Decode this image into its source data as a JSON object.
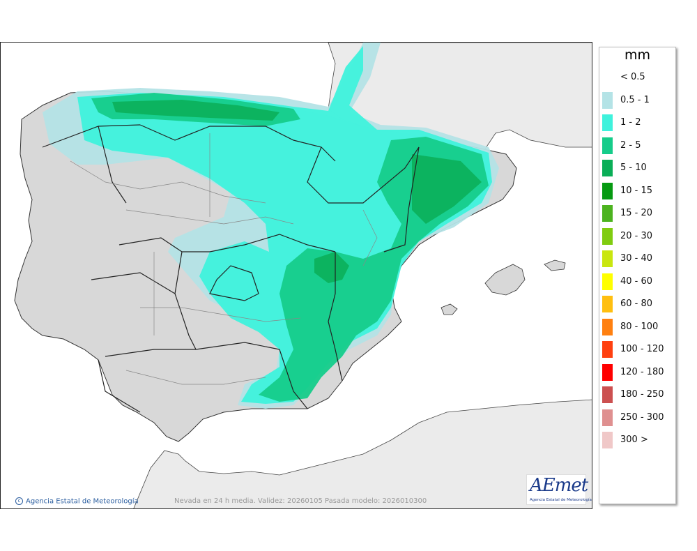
{
  "legend": {
    "title": "mm",
    "items": [
      {
        "label": "< 0.5",
        "color": "#ffffff"
      },
      {
        "label": "0.5 - 1",
        "color": "#b4e3e6"
      },
      {
        "label": "1 - 2",
        "color": "#3ff2dc"
      },
      {
        "label": "2 - 5",
        "color": "#16cc8a"
      },
      {
        "label": "5 - 10",
        "color": "#0aae57"
      },
      {
        "label": "10 - 15",
        "color": "#069a12"
      },
      {
        "label": "15 - 20",
        "color": "#4cb31f"
      },
      {
        "label": "20 - 30",
        "color": "#80cc10"
      },
      {
        "label": "30 - 40",
        "color": "#c9e60f"
      },
      {
        "label": "40 - 60",
        "color": "#ffff00"
      },
      {
        "label": "60 - 80",
        "color": "#ffbf10"
      },
      {
        "label": "80 - 100",
        "color": "#ff8010"
      },
      {
        "label": "100 - 120",
        "color": "#ff4010"
      },
      {
        "label": "120 - 180",
        "color": "#ff0000"
      },
      {
        "label": "180 - 250",
        "color": "#cc5050"
      },
      {
        "label": "250 - 300",
        "color": "#df9090"
      },
      {
        "label": "300 >",
        "color": "#f0c8c8"
      }
    ]
  },
  "footer": {
    "copyright": "Agencia Estatal de Meteorología",
    "caption": "Nevada en 24 h media. Validez: 20260105 Pasada modelo: 2026010300"
  },
  "logo": {
    "text": "AEmet",
    "subtitle": "Agencia Estatal de Meteorología"
  }
}
